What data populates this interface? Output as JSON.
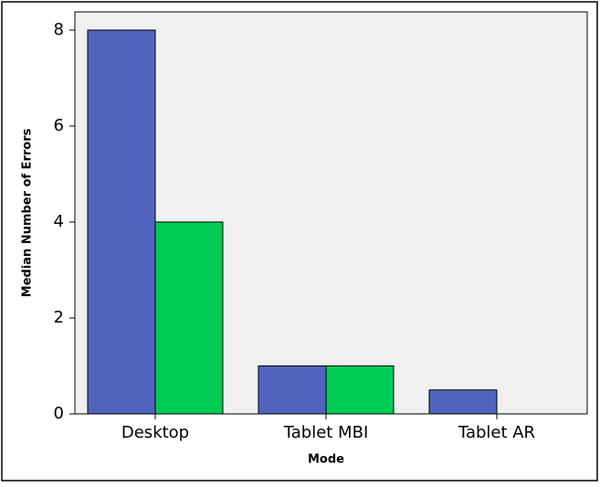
{
  "chart_data": {
    "type": "bar",
    "x_label": "Mode",
    "y_label": "Median Number of Errors",
    "categories": [
      "Desktop",
      "Tablet MBI",
      "Tablet AR"
    ],
    "series": [
      {
        "color": "#5064be",
        "values": [
          8,
          1,
          0.5
        ]
      },
      {
        "color": "#00cc55",
        "values": [
          4,
          1,
          0
        ]
      }
    ],
    "ylim": [
      0,
      8.38
    ],
    "yticks": [
      0,
      2,
      4,
      6,
      8
    ]
  }
}
